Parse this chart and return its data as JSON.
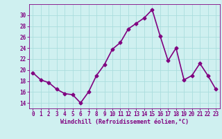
{
  "x": [
    0,
    1,
    2,
    3,
    4,
    5,
    6,
    7,
    8,
    9,
    10,
    11,
    12,
    13,
    14,
    15,
    16,
    17,
    18,
    19,
    20,
    21,
    22,
    23
  ],
  "y": [
    19.5,
    18.2,
    17.7,
    16.5,
    15.7,
    15.5,
    14.0,
    16.0,
    19.0,
    21.0,
    23.8,
    25.0,
    27.5,
    28.5,
    29.5,
    31.0,
    26.2,
    21.7,
    24.0,
    18.2,
    19.0,
    21.2,
    19.0,
    16.5
  ],
  "line_color": "#800080",
  "marker": "D",
  "marker_size": 2.5,
  "bg_color": "#cff0f0",
  "grid_color": "#aadddd",
  "xlabel": "Windchill (Refroidissement éolien,°C)",
  "tick_color": "#800080",
  "yticks": [
    14,
    16,
    18,
    20,
    22,
    24,
    26,
    28,
    30
  ],
  "xticks": [
    0,
    1,
    2,
    3,
    4,
    5,
    6,
    7,
    8,
    9,
    10,
    11,
    12,
    13,
    14,
    15,
    16,
    17,
    18,
    19,
    20,
    21,
    22,
    23
  ],
  "xlim": [
    -0.5,
    23.5
  ],
  "ylim": [
    13.0,
    32.0
  ],
  "spine_color": "#800080",
  "font_size_xlabel": 6.0,
  "font_size_ticks": 5.5,
  "line_width": 1.2
}
